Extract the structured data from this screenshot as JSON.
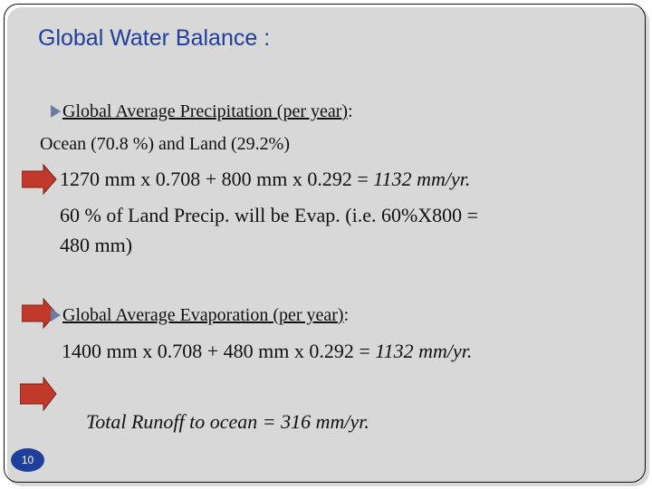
{
  "slide": {
    "title": "Global Water Balance :",
    "precip_heading": "Global Average Precipitation (per year)",
    "precip_colon": ":",
    "ocean_land": "Ocean (70.8 %)  and  Land  (29.2%)",
    "precip_calc": "1270 mm x 0.708  +  800 mm x 0.292 = ",
    "precip_result": "1132  mm/yr.",
    "evap_note_line1": "60 % of Land Precip. will be Evap. (i.e. 60%X800 =",
    "evap_note_line2": "480 mm)",
    "evap_heading": "Global Average Evaporation (per year)",
    "evap_colon": ":",
    "evap_calc": "1400 mm x 0.708  + 480 mm x 0.292  = ",
    "evap_result": "1132  mm/yr.",
    "runoff": "Total Runoff to ocean = 316  mm/yr.",
    "page_number": "10"
  },
  "colors": {
    "title": "#1f3f9a",
    "arrow": "#c0392b",
    "bullet": "#6b7ba8",
    "page_badge": "#1f3f9a"
  },
  "icons": [
    "right-arrow-icon",
    "triangle-bullet-icon"
  ]
}
